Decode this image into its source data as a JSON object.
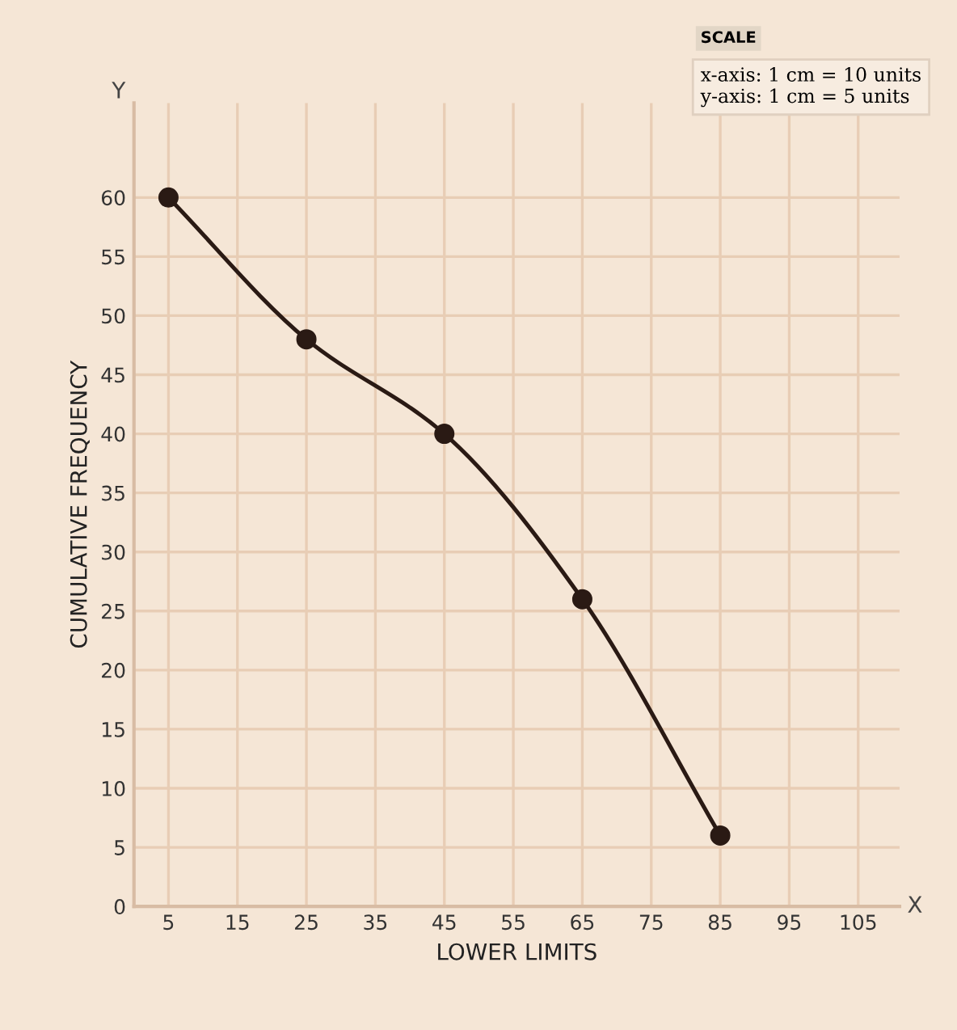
{
  "chart_data": {
    "type": "line",
    "xlabel": "LOWER LIMITS",
    "ylabel": "CUMULATIVE FREQUENCY",
    "x": [
      5,
      25,
      45,
      65,
      85
    ],
    "series": [
      {
        "color": "#2a1a14",
        "values": [
          60,
          48,
          40,
          26,
          6
        ]
      }
    ],
    "marker": "circle",
    "line_style": "solid",
    "grid": true,
    "xlim": [
      0,
      111
    ],
    "xticks": [
      5,
      15,
      25,
      35,
      45,
      55,
      65,
      75,
      85,
      95,
      105
    ],
    "ylim": [
      0,
      68
    ],
    "yticks": [
      0,
      5,
      10,
      15,
      20,
      25,
      30,
      35,
      40,
      45,
      50,
      55,
      60
    ],
    "annotations": [
      "X",
      "Y",
      "SCALE",
      "x-axis: 1 cm = 10 units",
      "y-axis: 1 cm = 5 units"
    ]
  }
}
